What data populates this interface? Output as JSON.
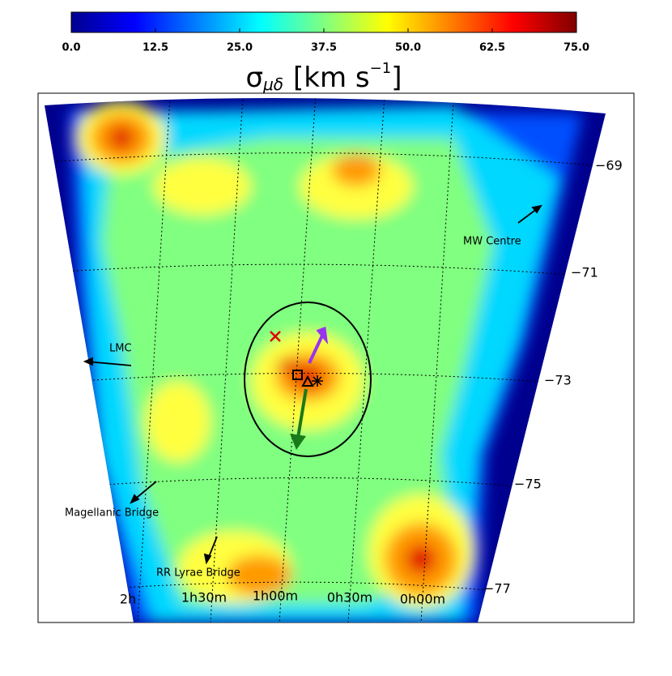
{
  "chart_data": {
    "type": "map",
    "colorbar": {
      "label_symbol": "σ",
      "label_subscript": "μδ",
      "label_unit": "[km s",
      "label_superscript": "−1",
      "label_close": "]",
      "clim": [
        0,
        75
      ],
      "ticks": [
        {
          "value": 0,
          "label": "0.0"
        },
        12.5,
        {
          "value": 25,
          "label": "25.0"
        },
        37.5,
        {
          "value": 50,
          "label": "50.0"
        },
        62.5,
        {
          "value": 75,
          "label": "75.0"
        }
      ],
      "colormap": [
        "#00008f",
        "#0000ff",
        "#0080ff",
        "#00ffff",
        "#80ff80",
        "#ffff00",
        "#ff8000",
        "#ff0000",
        "#800000"
      ]
    },
    "dec_labels": [
      "−69",
      "−71",
      "−73",
      "−75",
      "−77"
    ],
    "ra_labels": [
      "2h",
      "1h30m",
      "1h00m",
      "0h30m",
      "0h00m"
    ],
    "annotations": {
      "lmc": "LMC",
      "mw": "MW Centre",
      "bridge": "Magellanic Bridge",
      "rr": "RR Lyrae Bridge"
    }
  }
}
